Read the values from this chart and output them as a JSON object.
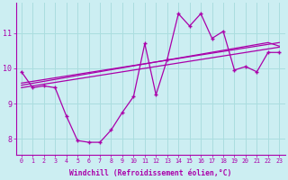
{
  "xlabel": "Windchill (Refroidissement éolien,°C)",
  "background_color": "#cceef2",
  "grid_color": "#aadddf",
  "line_color": "#aa00aa",
  "x_hours": [
    0,
    1,
    2,
    3,
    4,
    5,
    6,
    7,
    8,
    9,
    10,
    11,
    12,
    13,
    14,
    15,
    16,
    17,
    18,
    19,
    20,
    21,
    22,
    23
  ],
  "windchill": [
    9.9,
    9.45,
    9.5,
    9.45,
    8.65,
    7.95,
    7.9,
    7.9,
    8.25,
    8.75,
    9.2,
    10.7,
    9.25,
    10.25,
    11.55,
    11.2,
    11.55,
    10.85,
    11.05,
    9.95,
    10.05,
    9.9,
    10.45,
    10.45
  ],
  "smooth1": [
    9.58,
    9.63,
    9.68,
    9.73,
    9.78,
    9.83,
    9.88,
    9.93,
    9.98,
    10.03,
    10.08,
    10.13,
    10.18,
    10.23,
    10.28,
    10.33,
    10.38,
    10.43,
    10.48,
    10.53,
    10.58,
    10.63,
    10.68,
    10.73
  ],
  "smooth2": [
    9.52,
    9.575,
    9.63,
    9.685,
    9.74,
    9.795,
    9.85,
    9.905,
    9.96,
    10.015,
    10.07,
    10.125,
    10.18,
    10.235,
    10.29,
    10.345,
    10.4,
    10.455,
    10.51,
    10.565,
    10.62,
    10.675,
    10.73,
    10.63
  ],
  "smooth3": [
    9.45,
    9.5,
    9.55,
    9.6,
    9.65,
    9.7,
    9.75,
    9.8,
    9.85,
    9.9,
    9.95,
    10.0,
    10.05,
    10.1,
    10.15,
    10.2,
    10.25,
    10.3,
    10.35,
    10.4,
    10.45,
    10.5,
    10.55,
    10.6
  ],
  "ylim": [
    7.55,
    11.85
  ],
  "yticks": [
    8,
    9,
    10,
    11
  ],
  "xticks": [
    0,
    1,
    2,
    3,
    4,
    5,
    6,
    7,
    8,
    9,
    10,
    11,
    12,
    13,
    14,
    15,
    16,
    17,
    18,
    19,
    20,
    21,
    22,
    23
  ]
}
